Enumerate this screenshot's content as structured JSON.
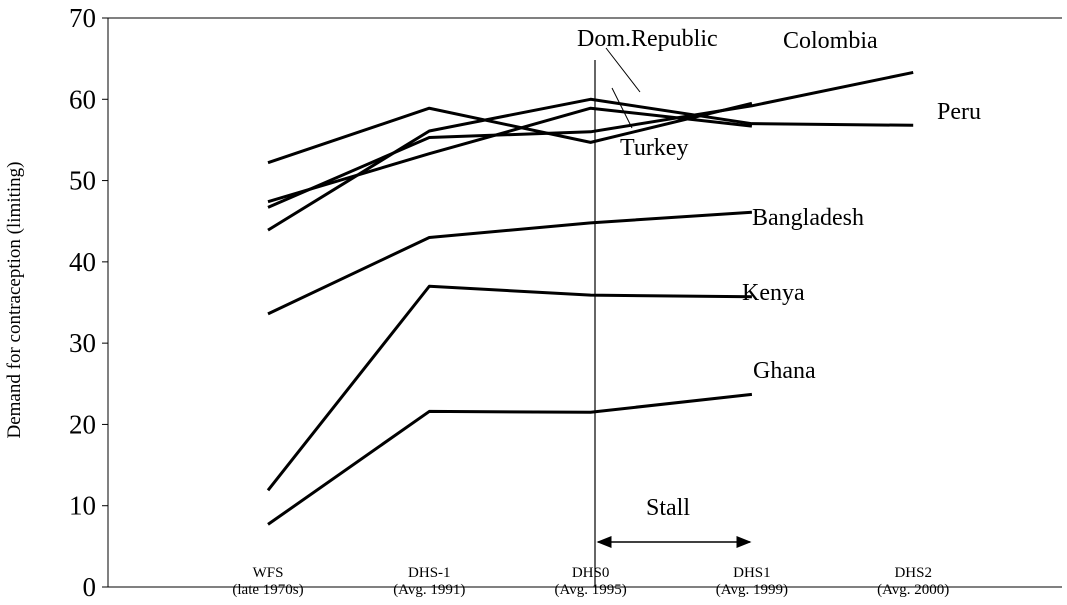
{
  "chart_data": {
    "type": "line",
    "y_label": "Demand for contraception (limiting)",
    "categories": [
      "WFS\n(late 1970s)",
      "DHS-1\n(Avg. 1991)",
      "DHS0\n(Avg. 1995)",
      "DHS1\n(Avg. 1999)",
      "DHS2\n(Avg. 2000)"
    ],
    "ylim": [
      0,
      70
    ],
    "yticks": [
      0,
      10,
      20,
      30,
      40,
      50,
      60,
      70
    ],
    "color": "#000000",
    "annotation": "Stall",
    "series": [
      {
        "name": "Colombia",
        "color": "#000000",
        "values": [
          46.7,
          55.3,
          56.0,
          59.2,
          63.3
        ]
      },
      {
        "name": "Peru",
        "color": "#000000",
        "values": [
          43.9,
          56.1,
          60.0,
          57.0,
          56.8
        ]
      },
      {
        "name": "Dom.Republic",
        "color": "#000000",
        "values": [
          52.2,
          58.9,
          54.7,
          59.5,
          null
        ]
      },
      {
        "name": "Turkey",
        "color": "#000000",
        "values": [
          47.4,
          53.3,
          58.9,
          56.7,
          null
        ]
      },
      {
        "name": "Bangladesh",
        "color": "#000000",
        "values": [
          33.6,
          43.0,
          44.8,
          46.1,
          null
        ]
      },
      {
        "name": "Kenya",
        "color": "#000000",
        "values": [
          11.9,
          37.0,
          35.9,
          35.7,
          null
        ]
      },
      {
        "name": "Ghana",
        "color": "#000000",
        "values": [
          7.7,
          21.6,
          21.5,
          23.7,
          null
        ]
      }
    ]
  }
}
